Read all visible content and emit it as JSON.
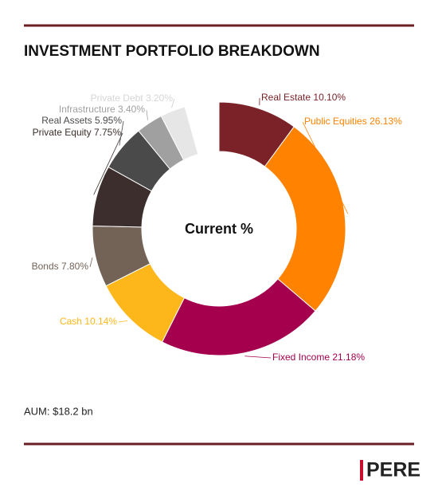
{
  "chart_data": {
    "type": "donut",
    "title": "INVESTMENT PORTFOLIO BREAKDOWN",
    "center_label": "Current %",
    "categories": [
      "Real Estate",
      "Public Equities",
      "Fixed Income",
      "Cash",
      "Bonds",
      "Private Equity",
      "Real Assets",
      "Infrastructure",
      "Private Debt"
    ],
    "series": [
      {
        "values": [
          10.1,
          26.13,
          21.18,
          10.14,
          7.8,
          7.75,
          5.95,
          3.4,
          3.2
        ],
        "value_labels": [
          "10.10%",
          "26.13%",
          "21.18%",
          "10.14%",
          "7.80%",
          "7.75%",
          "5.95%",
          "3.40%",
          "3.20%"
        ],
        "colors": [
          "#7b2228",
          "#ff8200",
          "#a4004e",
          "#fdb71a",
          "#736357",
          "#3b2e2c",
          "#4a4a4a",
          "#a0a0a0",
          "#e6e6e6"
        ]
      }
    ],
    "note": "AUM: $18.2 bn",
    "source": "PERE"
  }
}
